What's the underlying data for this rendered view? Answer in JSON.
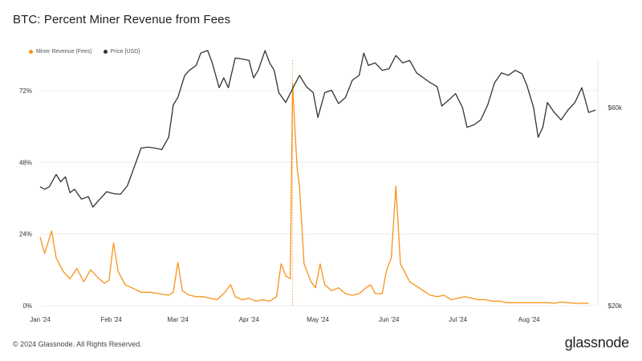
{
  "title": "BTC: Percent Miner Revenue from Fees",
  "legend": {
    "fees_label": "Miner Revenue (Fees)",
    "price_label": "Price [USD]"
  },
  "colors": {
    "fees": "#f7931a",
    "price": "#333333",
    "grid": "#ececec",
    "event_line": "#f5a04a"
  },
  "footer": {
    "copyright": "© 2024 Glassnode. All Rights Reserved.",
    "brand": "glassnode"
  },
  "chart_data": {
    "type": "line",
    "x_range": [
      "2024-01-01",
      "2024-08-31"
    ],
    "x_ticks": [
      {
        "label": "Jan '24",
        "date": "2024-01-01"
      },
      {
        "label": "Feb '24",
        "date": "2024-02-01"
      },
      {
        "label": "Mar '24",
        "date": "2024-03-01"
      },
      {
        "label": "Apr '24",
        "date": "2024-04-01"
      },
      {
        "label": "May '24",
        "date": "2024-05-01"
      },
      {
        "label": "Jun '24",
        "date": "2024-06-01"
      },
      {
        "label": "Jul '24",
        "date": "2024-07-01"
      },
      {
        "label": "Aug '24",
        "date": "2024-08-01"
      }
    ],
    "y_left": {
      "ticks": [
        0,
        24,
        48,
        72
      ],
      "labels": [
        "0%",
        "24%",
        "48%",
        "72%"
      ],
      "range": [
        0,
        80
      ]
    },
    "y_right": {
      "ticks": [
        20000,
        60000
      ],
      "labels": [
        "$20k",
        "$60k"
      ],
      "range": [
        20000,
        72000
      ],
      "scale": "linear"
    },
    "grid": "horizontal",
    "event_marker_date": "2024-04-20",
    "series": [
      {
        "name": "Miner Revenue (Fees)",
        "axis": "left",
        "points": [
          [
            "2024-01-01",
            23.0
          ],
          [
            "2024-01-03",
            17.5
          ],
          [
            "2024-01-06",
            25.0
          ],
          [
            "2024-01-08",
            16.0
          ],
          [
            "2024-01-11",
            11.5
          ],
          [
            "2024-01-14",
            9.0
          ],
          [
            "2024-01-17",
            12.5
          ],
          [
            "2024-01-20",
            8.0
          ],
          [
            "2024-01-23",
            12.0
          ],
          [
            "2024-01-26",
            9.5
          ],
          [
            "2024-01-29",
            7.5
          ],
          [
            "2024-01-31",
            8.5
          ],
          [
            "2024-02-02",
            21.0
          ],
          [
            "2024-02-04",
            11.5
          ],
          [
            "2024-02-07",
            7.0
          ],
          [
            "2024-02-10",
            6.0
          ],
          [
            "2024-02-14",
            4.5
          ],
          [
            "2024-02-18",
            4.5
          ],
          [
            "2024-02-22",
            4.0
          ],
          [
            "2024-02-26",
            3.5
          ],
          [
            "2024-02-28",
            4.5
          ],
          [
            "2024-03-01",
            14.5
          ],
          [
            "2024-03-03",
            5.0
          ],
          [
            "2024-03-06",
            3.5
          ],
          [
            "2024-03-09",
            3.0
          ],
          [
            "2024-03-12",
            3.0
          ],
          [
            "2024-03-15",
            2.5
          ],
          [
            "2024-03-18",
            2.0
          ],
          [
            "2024-03-21",
            4.0
          ],
          [
            "2024-03-24",
            7.0
          ],
          [
            "2024-03-26",
            3.0
          ],
          [
            "2024-03-29",
            2.0
          ],
          [
            "2024-04-01",
            2.5
          ],
          [
            "2024-04-04",
            1.5
          ],
          [
            "2024-04-07",
            2.0
          ],
          [
            "2024-04-10",
            1.5
          ],
          [
            "2024-04-13",
            3.0
          ],
          [
            "2024-04-15",
            14.0
          ],
          [
            "2024-04-17",
            10.0
          ],
          [
            "2024-04-19",
            9.0
          ],
          [
            "2024-04-20",
            74.5
          ],
          [
            "2024-04-21",
            59.0
          ],
          [
            "2024-04-22",
            46.0
          ],
          [
            "2024-04-23",
            40.0
          ],
          [
            "2024-04-25",
            14.0
          ],
          [
            "2024-04-28",
            8.0
          ],
          [
            "2024-04-30",
            6.0
          ],
          [
            "2024-05-02",
            14.0
          ],
          [
            "2024-05-04",
            7.0
          ],
          [
            "2024-05-07",
            5.0
          ],
          [
            "2024-05-10",
            6.0
          ],
          [
            "2024-05-13",
            4.0
          ],
          [
            "2024-05-16",
            3.5
          ],
          [
            "2024-05-19",
            4.0
          ],
          [
            "2024-05-22",
            6.0
          ],
          [
            "2024-05-24",
            7.0
          ],
          [
            "2024-05-26",
            4.0
          ],
          [
            "2024-05-29",
            4.0
          ],
          [
            "2024-05-31",
            12.0
          ],
          [
            "2024-06-02",
            16.0
          ],
          [
            "2024-06-04",
            40.0
          ],
          [
            "2024-06-06",
            14.0
          ],
          [
            "2024-06-08",
            11.0
          ],
          [
            "2024-06-10",
            8.0
          ],
          [
            "2024-06-13",
            6.5
          ],
          [
            "2024-06-16",
            5.0
          ],
          [
            "2024-06-19",
            3.5
          ],
          [
            "2024-06-22",
            3.0
          ],
          [
            "2024-06-25",
            3.5
          ],
          [
            "2024-06-28",
            2.0
          ],
          [
            "2024-07-01",
            2.5
          ],
          [
            "2024-07-04",
            3.0
          ],
          [
            "2024-07-07",
            2.5
          ],
          [
            "2024-07-10",
            2.0
          ],
          [
            "2024-07-13",
            2.0
          ],
          [
            "2024-07-16",
            1.5
          ],
          [
            "2024-07-19",
            1.5
          ],
          [
            "2024-07-22",
            1.0
          ],
          [
            "2024-07-25",
            1.0
          ],
          [
            "2024-07-28",
            1.0
          ],
          [
            "2024-07-31",
            1.0
          ],
          [
            "2024-08-03",
            1.0
          ],
          [
            "2024-08-06",
            1.0
          ],
          [
            "2024-08-09",
            1.0
          ],
          [
            "2024-08-12",
            0.8
          ],
          [
            "2024-08-15",
            1.2
          ],
          [
            "2024-08-18",
            1.0
          ],
          [
            "2024-08-21",
            0.8
          ],
          [
            "2024-08-24",
            0.8
          ],
          [
            "2024-08-27",
            0.8
          ]
        ]
      },
      {
        "name": "Price [USD]",
        "axis": "right",
        "points": [
          [
            "2024-01-01",
            44000
          ],
          [
            "2024-01-03",
            43500
          ],
          [
            "2024-01-05",
            44000
          ],
          [
            "2024-01-08",
            46500
          ],
          [
            "2024-01-10",
            45000
          ],
          [
            "2024-01-12",
            46000
          ],
          [
            "2024-01-14",
            42800
          ],
          [
            "2024-01-16",
            43500
          ],
          [
            "2024-01-19",
            41500
          ],
          [
            "2024-01-22",
            42000
          ],
          [
            "2024-01-24",
            39900
          ],
          [
            "2024-01-27",
            41500
          ],
          [
            "2024-01-30",
            43000
          ],
          [
            "2024-02-02",
            42600
          ],
          [
            "2024-02-05",
            42500
          ],
          [
            "2024-02-08",
            44200
          ],
          [
            "2024-02-11",
            48000
          ],
          [
            "2024-02-14",
            51800
          ],
          [
            "2024-02-17",
            52000
          ],
          [
            "2024-02-20",
            51800
          ],
          [
            "2024-02-23",
            51500
          ],
          [
            "2024-02-26",
            54000
          ],
          [
            "2024-02-28",
            60500
          ],
          [
            "2024-03-01",
            62000
          ],
          [
            "2024-03-04",
            66500
          ],
          [
            "2024-03-06",
            67500
          ],
          [
            "2024-03-09",
            68500
          ],
          [
            "2024-03-11",
            71000
          ],
          [
            "2024-03-14",
            71500
          ],
          [
            "2024-03-16",
            69000
          ],
          [
            "2024-03-19",
            64000
          ],
          [
            "2024-03-21",
            66000
          ],
          [
            "2024-03-23",
            64000
          ],
          [
            "2024-03-26",
            70000
          ],
          [
            "2024-03-29",
            69800
          ],
          [
            "2024-04-01",
            69500
          ],
          [
            "2024-04-03",
            66000
          ],
          [
            "2024-04-05",
            67500
          ],
          [
            "2024-04-08",
            71500
          ],
          [
            "2024-04-10",
            69000
          ],
          [
            "2024-04-12",
            67500
          ],
          [
            "2024-04-14",
            63000
          ],
          [
            "2024-04-17",
            61000
          ],
          [
            "2024-04-20",
            63800
          ],
          [
            "2024-04-23",
            66500
          ],
          [
            "2024-04-26",
            64200
          ],
          [
            "2024-04-29",
            63000
          ],
          [
            "2024-05-01",
            58000
          ],
          [
            "2024-05-04",
            63000
          ],
          [
            "2024-05-07",
            63500
          ],
          [
            "2024-05-10",
            60800
          ],
          [
            "2024-05-13",
            62000
          ],
          [
            "2024-05-16",
            65500
          ],
          [
            "2024-05-19",
            66500
          ],
          [
            "2024-05-21",
            71000
          ],
          [
            "2024-05-23",
            68500
          ],
          [
            "2024-05-26",
            69000
          ],
          [
            "2024-05-29",
            67500
          ],
          [
            "2024-06-01",
            67800
          ],
          [
            "2024-06-04",
            70500
          ],
          [
            "2024-06-07",
            69000
          ],
          [
            "2024-06-10",
            69500
          ],
          [
            "2024-06-13",
            67000
          ],
          [
            "2024-06-16",
            66000
          ],
          [
            "2024-06-19",
            65000
          ],
          [
            "2024-06-22",
            64200
          ],
          [
            "2024-06-24",
            60300
          ],
          [
            "2024-06-27",
            61500
          ],
          [
            "2024-06-30",
            62800
          ],
          [
            "2024-07-03",
            60000
          ],
          [
            "2024-07-05",
            56000
          ],
          [
            "2024-07-08",
            56500
          ],
          [
            "2024-07-11",
            57500
          ],
          [
            "2024-07-14",
            60500
          ],
          [
            "2024-07-17",
            65000
          ],
          [
            "2024-07-20",
            67000
          ],
          [
            "2024-07-23",
            66500
          ],
          [
            "2024-07-26",
            67500
          ],
          [
            "2024-07-29",
            66800
          ],
          [
            "2024-07-31",
            64600
          ],
          [
            "2024-08-03",
            60000
          ],
          [
            "2024-08-05",
            54000
          ],
          [
            "2024-08-07",
            56000
          ],
          [
            "2024-08-09",
            61000
          ],
          [
            "2024-08-12",
            59000
          ],
          [
            "2024-08-15",
            57500
          ],
          [
            "2024-08-18",
            59500
          ],
          [
            "2024-08-21",
            61000
          ],
          [
            "2024-08-24",
            64000
          ],
          [
            "2024-08-27",
            59000
          ],
          [
            "2024-08-30",
            59500
          ]
        ]
      }
    ]
  }
}
